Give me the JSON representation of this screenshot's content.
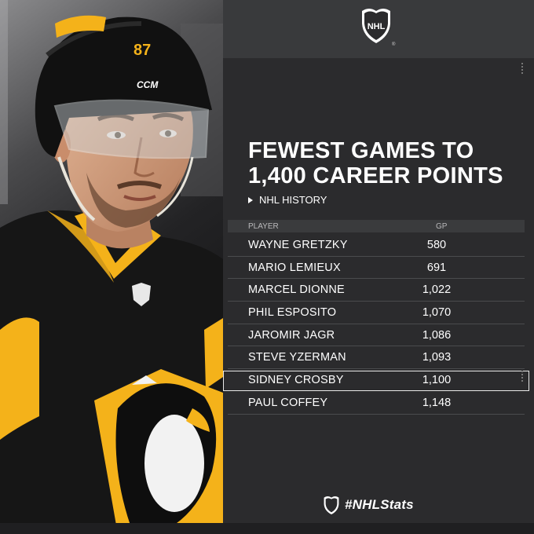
{
  "header": {
    "logo": "nhl-shield-logo",
    "logo_text": "NHL",
    "reg_mark": "®"
  },
  "title_line1": "FEWEST GAMES TO",
  "title_line2": "1,400 CAREER POINTS",
  "subtitle": "NHL HISTORY",
  "table": {
    "columns": [
      "PLAYER",
      "GP"
    ],
    "rows": [
      {
        "player": "WAYNE GRETZKY",
        "gp": "580"
      },
      {
        "player": "MARIO LEMIEUX",
        "gp": "691"
      },
      {
        "player": "MARCEL DIONNE",
        "gp": "1,022"
      },
      {
        "player": "PHIL ESPOSITO",
        "gp": "1,070"
      },
      {
        "player": "JAROMIR JAGR",
        "gp": "1,086"
      },
      {
        "player": "STEVE YZERMAN",
        "gp": "1,093"
      },
      {
        "player": "SIDNEY CROSBY",
        "gp": "1,100",
        "highlighted": true
      },
      {
        "player": "PAUL COFFEY",
        "gp": "1,148"
      }
    ]
  },
  "hashtag": "#NHLStats",
  "photo": {
    "helmet_number": "87",
    "helmet_brand": "CCM",
    "colors": {
      "jersey_black": "#141414",
      "jersey_gold": "#f4b21a"
    }
  }
}
